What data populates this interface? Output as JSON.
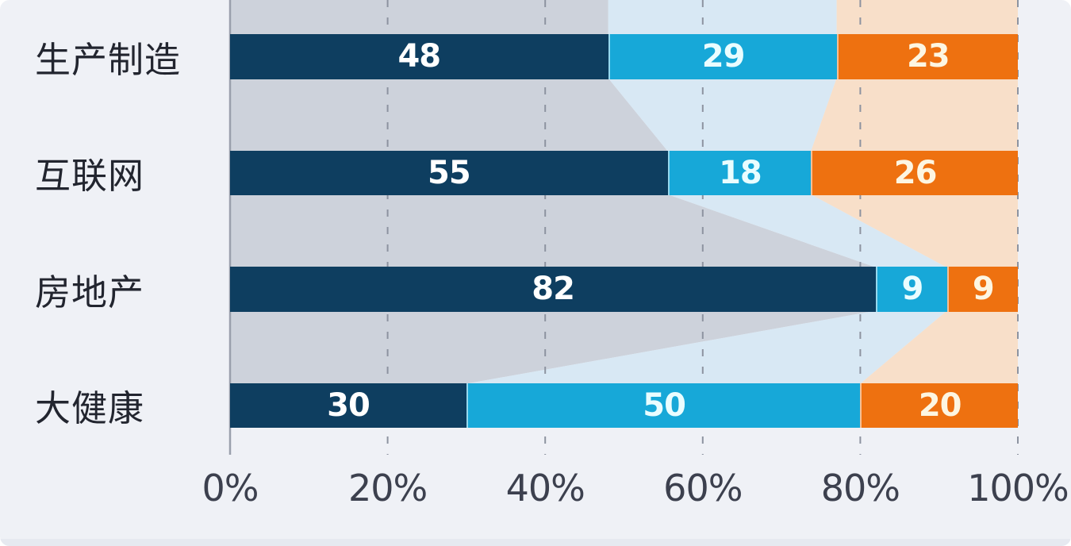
{
  "colors": {
    "page_background": "#eff1f6",
    "category_text": "#22252f",
    "tick_text": "#3c404e",
    "gridline_dashed": "#8d93a0",
    "axis_line": "#9aa0ac"
  },
  "chart_data": {
    "type": "bar",
    "orientation": "horizontal-stacked",
    "title": "",
    "legend": "none",
    "grid": "dashed-vertical",
    "xlim": [
      0,
      100
    ],
    "x_ticks": [
      "0%",
      "20%",
      "40%",
      "60%",
      "80%",
      "100%"
    ],
    "categories": [
      "生产制造",
      "互联网",
      "房地产",
      "大健康"
    ],
    "series": [
      {
        "name": "segment-1",
        "color": "#0e3e60",
        "label_color": "#ffffff",
        "values": [
          48,
          55,
          82,
          30
        ]
      },
      {
        "name": "segment-2",
        "color": "#17a8d8",
        "label_color": "#eafdff",
        "values": [
          29,
          18,
          9,
          50
        ]
      },
      {
        "name": "segment-3",
        "color": "#ee7110",
        "label_color": "#fdf6e2",
        "values": [
          23,
          26,
          9,
          20
        ]
      }
    ],
    "ribbon_colors": [
      "#cdd2db",
      "#d8e8f4",
      "#f8dfc9"
    ]
  }
}
